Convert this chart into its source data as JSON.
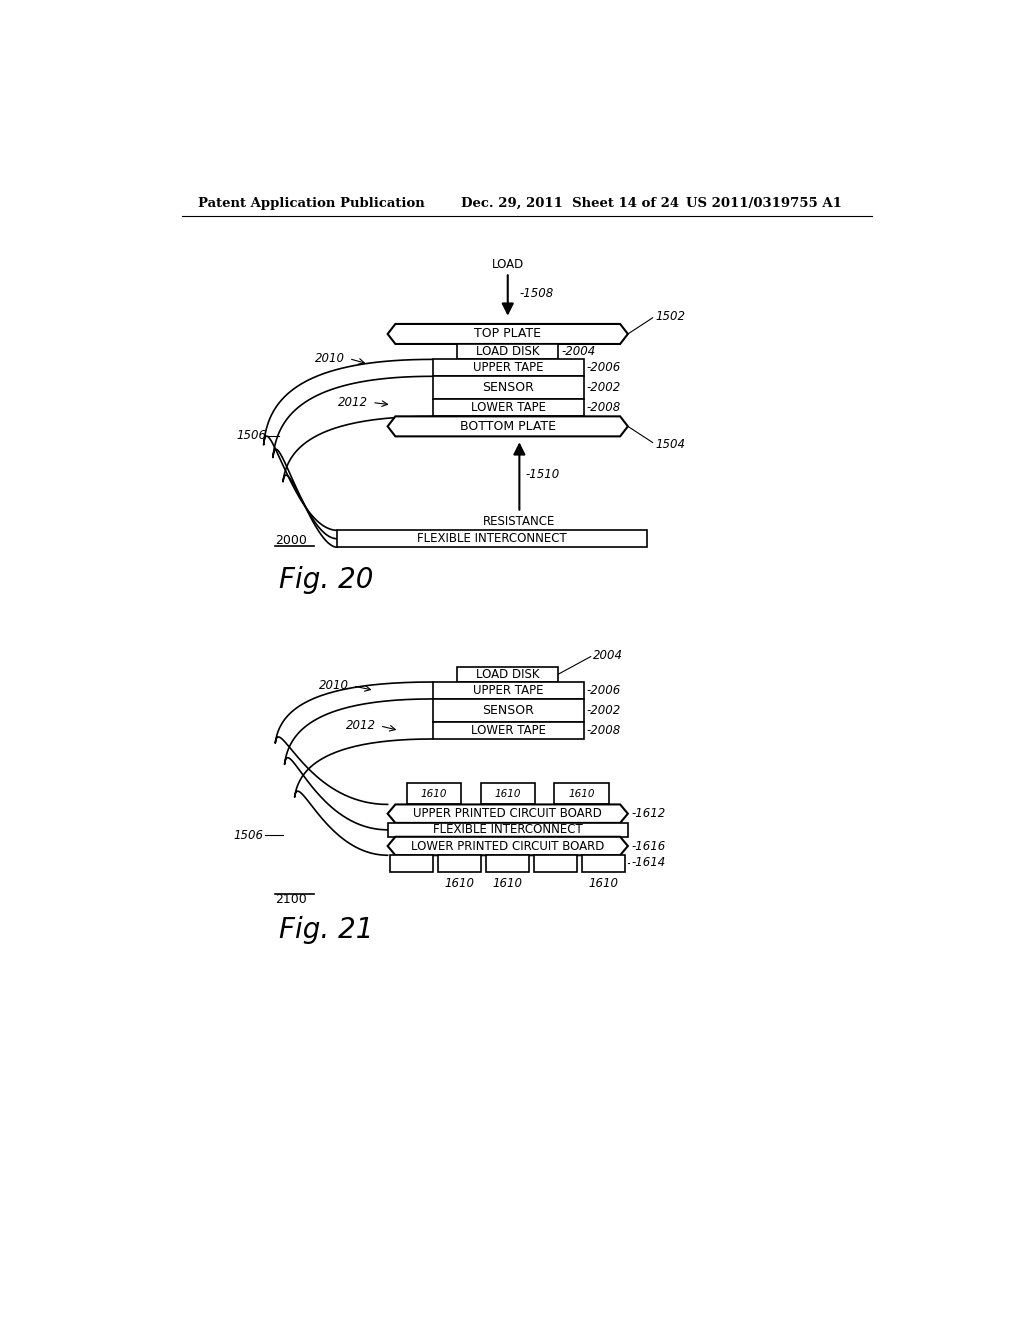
{
  "bg_color": "#ffffff",
  "header": "Patent Application Publication     Dec. 29, 2011  Sheet 14 of 24     US 2011/0319755 A1",
  "fig20_label": "Fig. 20",
  "fig21_label": "Fig. 21",
  "fig20_num": "2000",
  "fig21_num": "2100",
  "fig20": {
    "top_plate_label": "TOP PLATE",
    "top_plate_ref": "1502",
    "load_disk_label": "LOAD DISK",
    "load_disk_ref": "2004",
    "upper_tape_label": "UPPER TAPE",
    "upper_tape_ref": "2006",
    "sensor_label": "SENSOR",
    "sensor_ref": "2002",
    "lower_tape_label": "LOWER TAPE",
    "lower_tape_ref": "2008",
    "bottom_plate_label": "BOTTOM PLATE",
    "bottom_plate_ref": "1504",
    "flex_ic_label": "FLEXIBLE INTERCONNECT",
    "resistance_label": "RESISTANCE",
    "load_label": "LOAD",
    "load_ref": "1508",
    "resistance_ref": "1510",
    "flex_ref": "1506",
    "tape_ref_2010": "2010",
    "tape_ref_2012": "2012"
  },
  "fig21": {
    "load_disk_label": "LOAD DISK",
    "load_disk_ref": "2004",
    "upper_tape_label": "UPPER TAPE",
    "upper_tape_ref": "2006",
    "sensor_label": "SENSOR",
    "sensor_ref": "2002",
    "lower_tape_label": "LOWER TAPE",
    "lower_tape_ref": "2008",
    "upper_pcb_label": "UPPER PRINTED CIRCUIT BOARD",
    "upper_pcb_ref": "1612",
    "flex_ic_label": "FLEXIBLE INTERCONNECT",
    "lower_pcb_label": "LOWER PRINTED CIRCUIT BOARD",
    "lower_pcb_ref": "1616",
    "flex_ref": "1506",
    "tape_ref_2010": "2010",
    "tape_ref_2012": "2012",
    "comp_ref": "1610",
    "flex_inter_ref": "1614"
  }
}
